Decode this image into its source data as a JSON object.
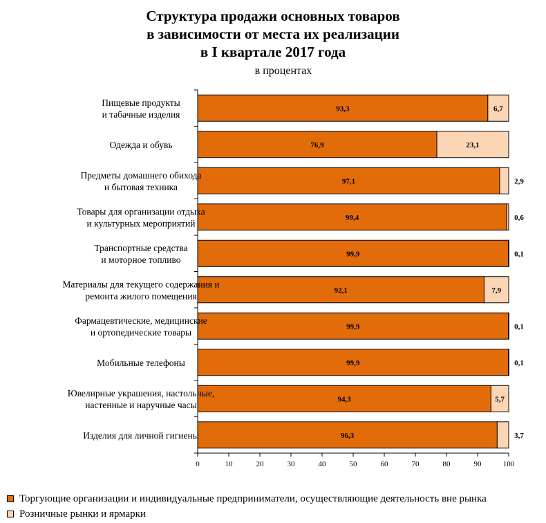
{
  "title_lines": [
    "Структура продажи основных товаров",
    "в зависимости от места их реализации",
    "в I квартале 2017 года"
  ],
  "subtitle": "в процентах",
  "colors": {
    "organizations": "#e36c0a",
    "markets": "#fcd5b4",
    "axis": "#000000"
  },
  "legend": [
    {
      "label": "Торгующие организации и индивидуальные предприниматели, осуществляющие деятельность вне рынка",
      "color": "#e36c0a"
    },
    {
      "label": "Розничные рынки и ярмарки",
      "color": "#fcd5b4"
    }
  ],
  "chart_data": {
    "type": "bar",
    "orientation": "horizontal",
    "stacked": true,
    "categories": [
      [
        "Пищевые продукты",
        "и табачные изделия"
      ],
      [
        "Одежда и обувь"
      ],
      [
        "Предметы домашнего обихода",
        "и бытовая техника"
      ],
      [
        "Товары для организации отдыха",
        "и культурных мероприятий"
      ],
      [
        "Транспортные средства",
        "и моторное топливо"
      ],
      [
        "Материалы для текущего содержания и",
        "ремонта жилого помещения"
      ],
      [
        "Фармацевтические, медицинские",
        "и ортопедические товары"
      ],
      [
        "Мобильные телефоны"
      ],
      [
        "Ювелирные украшения, настольные,",
        "настенные и наручные часы"
      ],
      [
        "Изделия для личной гигиены"
      ]
    ],
    "series": [
      {
        "name": "Торгующие организации и индивидуальные предприниматели, осуществляющие деятельность вне рынка",
        "values": [
          93.3,
          76.9,
          97.1,
          99.4,
          99.9,
          92.1,
          99.9,
          99.9,
          94.3,
          96.3
        ],
        "labels": [
          "93,3",
          "76,9",
          "97,1",
          "99,4",
          "99,9",
          "92,1",
          "99,9",
          "99,9",
          "94,3",
          "96,3"
        ]
      },
      {
        "name": "Розничные рынки и ярмарки",
        "values": [
          6.7,
          23.1,
          2.9,
          0.6,
          0.1,
          7.9,
          0.1,
          0.1,
          5.7,
          3.7
        ],
        "labels": [
          "6,7",
          "23,1",
          "2,9",
          "0,6",
          "0,1",
          "7,9",
          "0,1",
          "0,1",
          "5,7",
          "3,7"
        ]
      }
    ],
    "xlim": [
      0,
      100
    ],
    "xticks": [
      0,
      10,
      20,
      30,
      40,
      50,
      60,
      70,
      80,
      90,
      100
    ],
    "grid": false,
    "legend_position": "bottom"
  }
}
